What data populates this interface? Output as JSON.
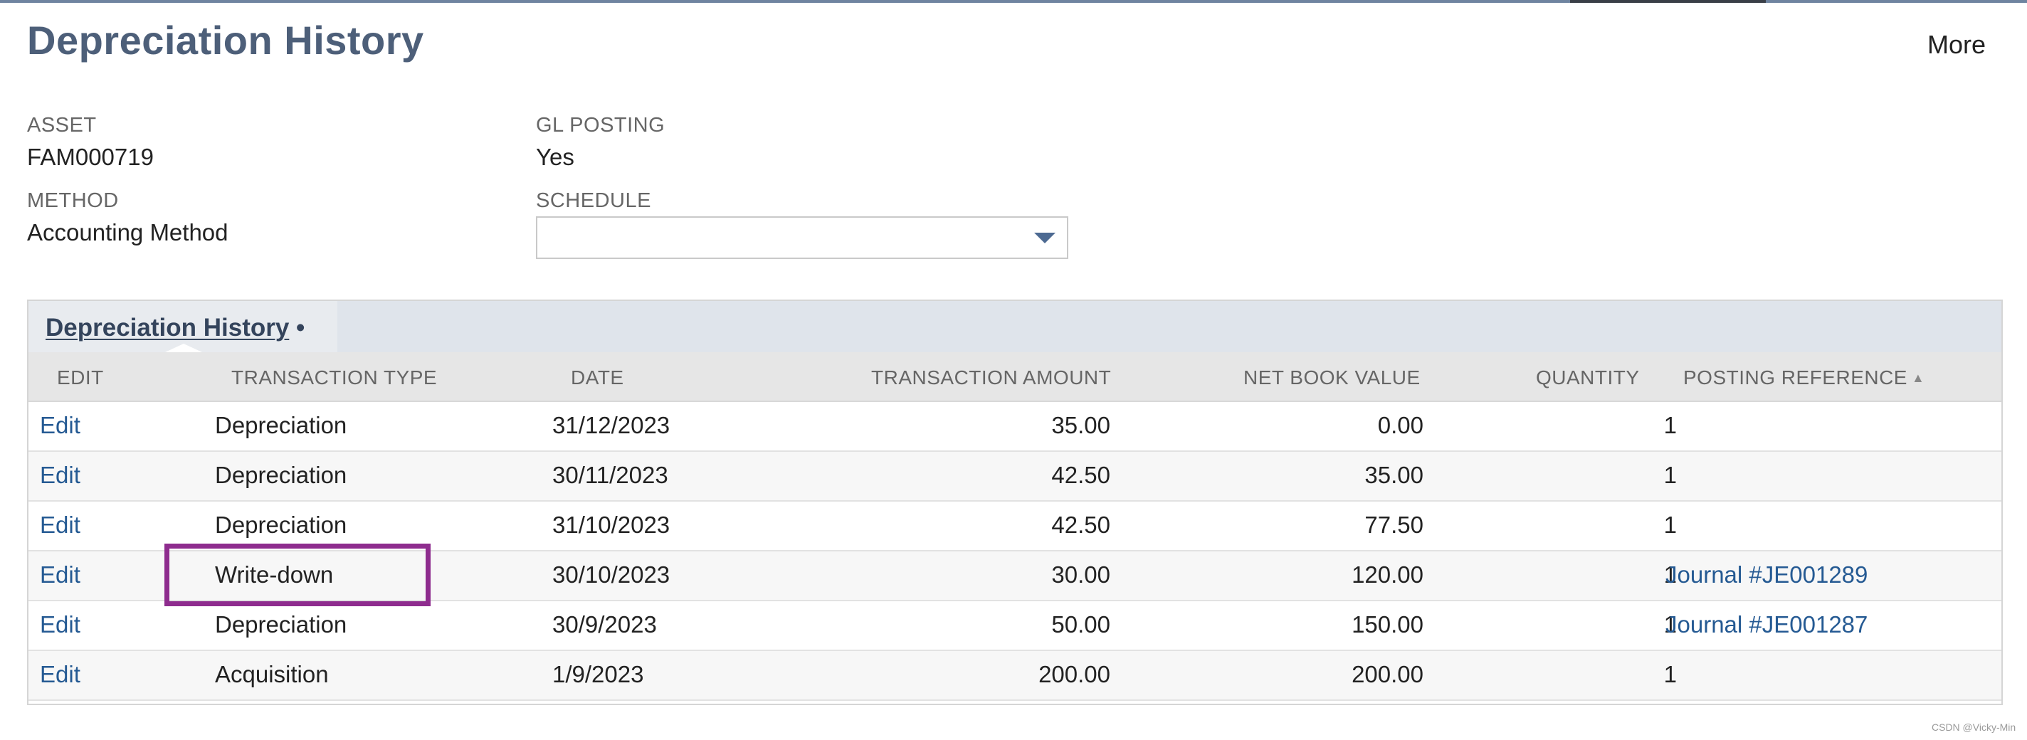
{
  "page": {
    "title": "Depreciation History",
    "more_label": "More"
  },
  "fields": {
    "asset": {
      "label": "ASSET",
      "value": "FAM000719"
    },
    "method": {
      "label": "METHOD",
      "value": "Accounting Method"
    },
    "gl_posting": {
      "label": "GL POSTING",
      "value": "Yes"
    },
    "schedule": {
      "label": "SCHEDULE",
      "value": ""
    }
  },
  "sublist": {
    "tab_label": "Depreciation History",
    "tab_marker": "•",
    "columns": {
      "edit": "EDIT",
      "transaction_type": "TRANSACTION TYPE",
      "date": "DATE",
      "transaction_amount": "TRANSACTION AMOUNT",
      "net_book_value": "NET BOOK VALUE",
      "quantity": "QUANTITY",
      "posting_reference": "POSTING REFERENCE"
    },
    "sort_indicator": "▲",
    "rows": [
      {
        "edit": "Edit",
        "type": "Depreciation",
        "date": "31/12/2023",
        "amount": "35.00",
        "nbv": "0.00",
        "qty": "1",
        "ref": ""
      },
      {
        "edit": "Edit",
        "type": "Depreciation",
        "date": "30/11/2023",
        "amount": "42.50",
        "nbv": "35.00",
        "qty": "1",
        "ref": ""
      },
      {
        "edit": "Edit",
        "type": "Depreciation",
        "date": "31/10/2023",
        "amount": "42.50",
        "nbv": "77.50",
        "qty": "1",
        "ref": ""
      },
      {
        "edit": "Edit",
        "type": "Write-down",
        "date": "30/10/2023",
        "amount": "30.00",
        "nbv": "120.00",
        "qty": "1",
        "ref": "Journal #JE001289"
      },
      {
        "edit": "Edit",
        "type": "Depreciation",
        "date": "30/9/2023",
        "amount": "50.00",
        "nbv": "150.00",
        "qty": "1",
        "ref": "Journal #JE001287"
      },
      {
        "edit": "Edit",
        "type": "Acquisition",
        "date": "1/9/2023",
        "amount": "200.00",
        "nbv": "200.00",
        "qty": "1",
        "ref": ""
      }
    ]
  },
  "annotation": {
    "highlight_color": "#8e2c8e"
  },
  "watermark": "CSDN @Vicky-Min",
  "colors": {
    "title": "#4d5f79",
    "link": "#255a93",
    "header_bg": "#dfe4eb"
  }
}
